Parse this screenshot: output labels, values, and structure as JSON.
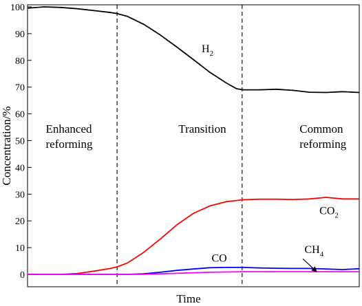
{
  "chart_data": {
    "type": "line",
    "xlabel": "Time",
    "ylabel": "Concentration/%",
    "xlim": [
      0,
      100
    ],
    "ylim": [
      0,
      100
    ],
    "yticks": [
      0,
      10,
      20,
      30,
      40,
      50,
      60,
      70,
      80,
      90,
      100
    ],
    "grid": false,
    "x_tick_labels_shown": false,
    "dividers": [
      27,
      64.7
    ],
    "regions": [
      {
        "lines": [
          "Enhanced",
          "reforming"
        ],
        "x": 5.5,
        "y": 53
      },
      {
        "lines": [
          "Transition"
        ],
        "x": 45.5,
        "y": 53
      },
      {
        "lines": [
          "Common",
          "reforming"
        ],
        "x": 82,
        "y": 53
      }
    ],
    "series": [
      {
        "name": "H2",
        "label_main": "H",
        "label_sub": "2",
        "color": "#000000",
        "label_pos": [
          52.5,
          83
        ],
        "x": [
          0,
          5,
          10,
          15,
          20,
          25,
          27,
          30,
          35,
          40,
          45,
          50,
          55,
          60,
          63,
          65,
          70,
          75,
          80,
          85,
          90,
          95,
          100
        ],
        "y": [
          99.5,
          100,
          99.8,
          99.3,
          98.6,
          97.9,
          97.5,
          96.5,
          93.5,
          89.5,
          85,
          80.3,
          75.5,
          71.5,
          69.4,
          69,
          69,
          69.2,
          68.8,
          68.1,
          68,
          68.3,
          68
        ]
      },
      {
        "name": "CO2",
        "label_main": "CO",
        "label_sub": "2",
        "color": "#ff0000",
        "label_pos": [
          88,
          22.5
        ],
        "x": [
          0,
          5,
          10,
          15,
          20,
          25,
          27,
          30,
          35,
          40,
          45,
          50,
          55,
          60,
          63,
          65,
          70,
          75,
          80,
          85,
          90,
          95,
          100
        ],
        "y": [
          0,
          0,
          0,
          0.3,
          1.2,
          2.2,
          2.8,
          4.2,
          8.2,
          13.2,
          18.5,
          22.8,
          25.6,
          27.2,
          27.6,
          27.9,
          28.1,
          28.1,
          28,
          28.2,
          28.8,
          28.2,
          28.2
        ]
      },
      {
        "name": "CO",
        "label_main": "CO",
        "label_sub": "",
        "color": "#0000ff",
        "label_pos": [
          55.5,
          4.8
        ],
        "x": [
          0,
          10,
          20,
          27,
          30,
          35,
          40,
          45,
          50,
          55,
          60,
          65,
          70,
          75,
          80,
          85,
          90,
          95,
          100
        ],
        "y": [
          0,
          0,
          0,
          0,
          0,
          0.2,
          0.8,
          1.5,
          2,
          2.5,
          2.6,
          2.6,
          2.4,
          2.3,
          2.2,
          2.2,
          2,
          1.8,
          2.1
        ]
      },
      {
        "name": "CH4",
        "label_main": "CH",
        "label_sub": "4",
        "color": "#ff00ff",
        "label_pos": [
          83.5,
          8
        ],
        "x": [
          0,
          10,
          20,
          27,
          30,
          35,
          40,
          45,
          50,
          55,
          60,
          65,
          70,
          75,
          80,
          85,
          90,
          95,
          100
        ],
        "y": [
          0,
          0,
          0,
          0,
          0,
          0,
          0.2,
          0.4,
          0.6,
          0.8,
          0.9,
          1,
          1,
          1,
          1,
          1,
          1,
          1,
          1
        ]
      }
    ],
    "annotations": [
      {
        "type": "arrow",
        "series": "CH4",
        "from": [
          83,
          5.8
        ],
        "to": [
          87,
          1.2
        ]
      }
    ]
  }
}
